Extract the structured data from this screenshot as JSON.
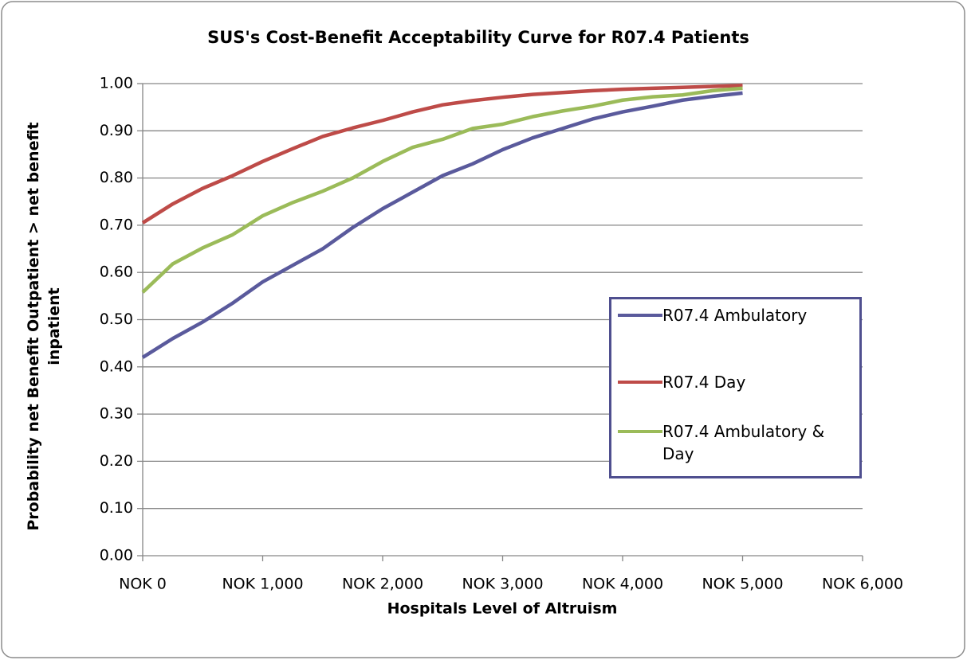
{
  "chart_data": {
    "type": "line",
    "title": "SUS's Cost-Benefit Acceptability Curve for R07.4 Patients",
    "x_label": "Hospitals Level of Altruism",
    "y_label": "Probability net Benefit Outpatient > net benefit inpatient",
    "x": [
      0,
      250,
      500,
      750,
      1000,
      1250,
      1500,
      1750,
      2000,
      2250,
      2500,
      2750,
      3000,
      3250,
      3500,
      3750,
      4000,
      4250,
      4500,
      4750,
      5000
    ],
    "series": [
      {
        "name": "R07.4 Ambulatory",
        "color": "#5A5A9C",
        "values": [
          0.42,
          0.46,
          0.495,
          0.535,
          0.58,
          0.615,
          0.65,
          0.695,
          0.735,
          0.77,
          0.805,
          0.83,
          0.86,
          0.885,
          0.905,
          0.925,
          0.94,
          0.952,
          0.965,
          0.973,
          0.98
        ]
      },
      {
        "name": "R07.4 Day",
        "color": "#BE4B48",
        "values": [
          0.705,
          0.745,
          0.778,
          0.805,
          0.835,
          0.862,
          0.888,
          0.906,
          0.922,
          0.94,
          0.955,
          0.964,
          0.971,
          0.977,
          0.981,
          0.985,
          0.988,
          0.99,
          0.992,
          0.994,
          0.996
        ]
      },
      {
        "name": "R07.4 Ambulatory & Day",
        "color": "#9BBB59",
        "values": [
          0.558,
          0.618,
          0.652,
          0.68,
          0.72,
          0.748,
          0.772,
          0.8,
          0.835,
          0.865,
          0.882,
          0.905,
          0.914,
          0.93,
          0.942,
          0.952,
          0.965,
          0.972,
          0.976,
          0.985,
          0.99
        ]
      }
    ],
    "xlim": [
      0,
      6000
    ],
    "xticks": [
      {
        "value": 0,
        "label": "NOK 0"
      },
      {
        "value": 1000,
        "label": "NOK 1,000"
      },
      {
        "value": 2000,
        "label": "NOK 2,000"
      },
      {
        "value": 3000,
        "label": "NOK 3,000"
      },
      {
        "value": 4000,
        "label": "NOK 4,000"
      },
      {
        "value": 5000,
        "label": "NOK 5,000"
      },
      {
        "value": 6000,
        "label": "NOK 6,000"
      }
    ],
    "ylim": [
      0,
      1
    ],
    "yticks": [
      {
        "value": 0,
        "label": "0.00"
      },
      {
        "value": 0.1,
        "label": "0.10"
      },
      {
        "value": 0.2,
        "label": "0.20"
      },
      {
        "value": 0.3,
        "label": "0.30"
      },
      {
        "value": 0.4,
        "label": "0.40"
      },
      {
        "value": 0.5,
        "label": "0.50"
      },
      {
        "value": 0.6,
        "label": "0.60"
      },
      {
        "value": 0.7,
        "label": "0.70"
      },
      {
        "value": 0.8,
        "label": "0.80"
      },
      {
        "value": 0.9,
        "label": "0.90"
      },
      {
        "value": 1,
        "label": "1.00"
      }
    ],
    "grid": true,
    "legend": "right"
  }
}
